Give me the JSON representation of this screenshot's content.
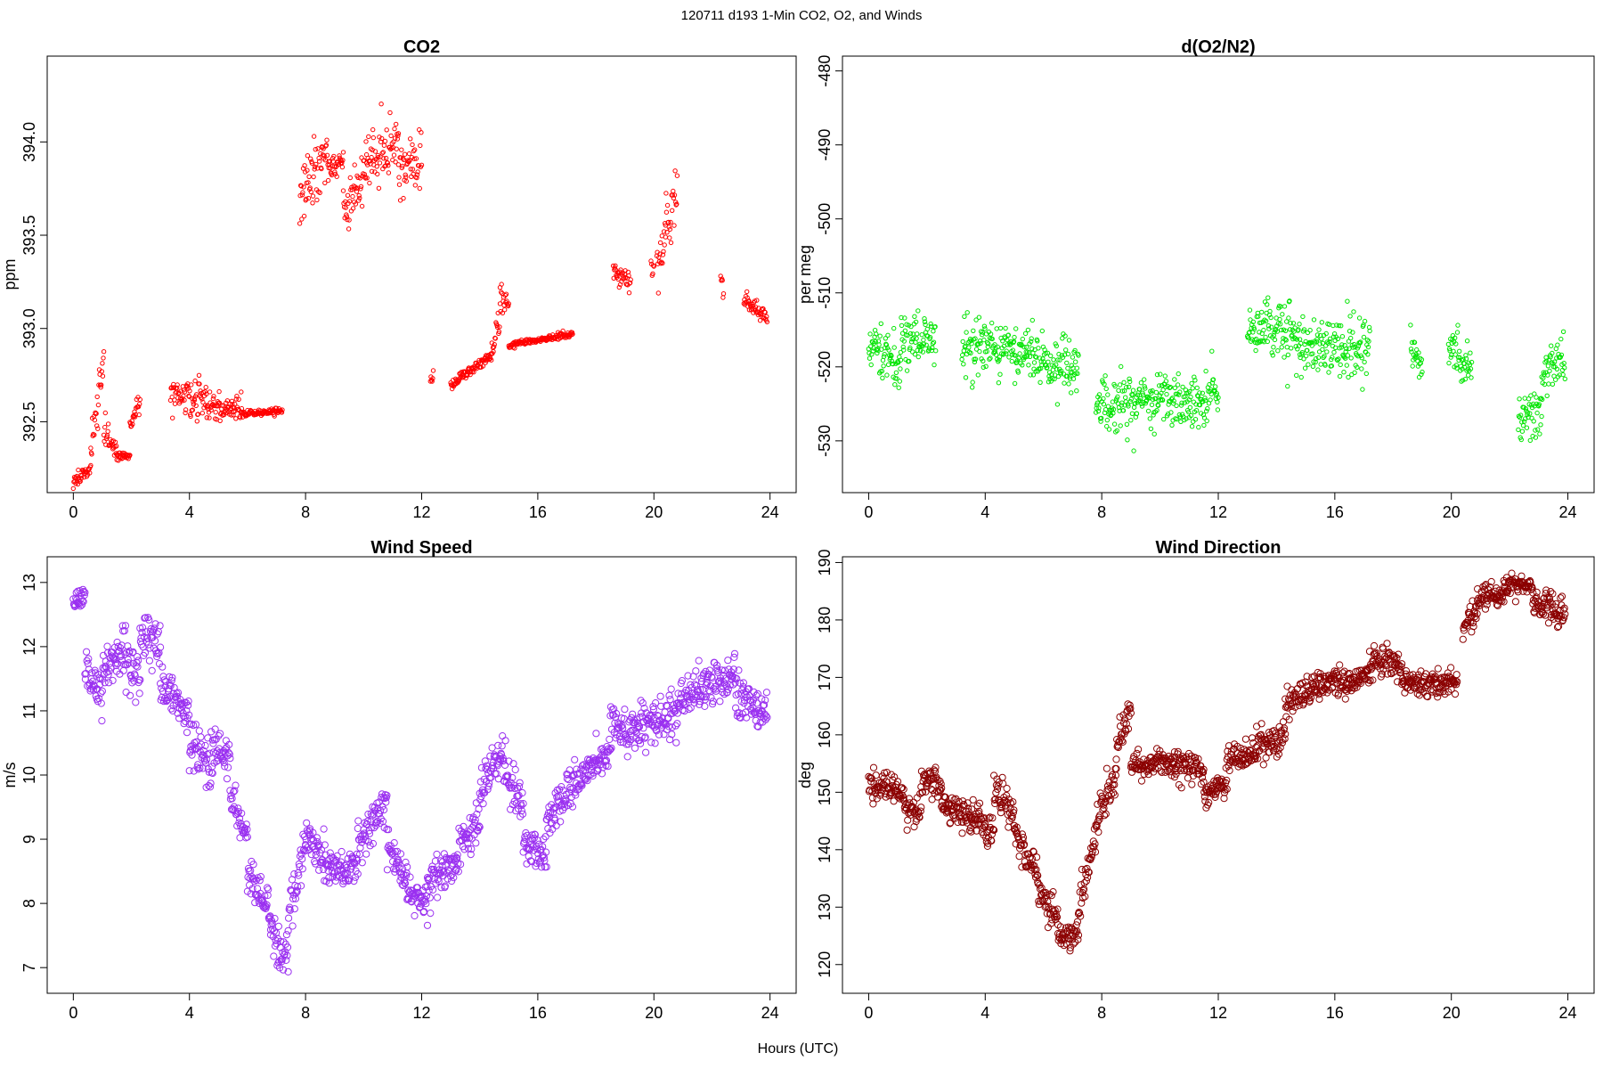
{
  "figure": {
    "title": "120711   d193   1-Min CO2, O2, and Winds",
    "xlabel": "Hours (UTC)"
  },
  "chart_data": [
    {
      "type": "scatter",
      "title": "CO2",
      "ylabel": "ppm",
      "color": "#ff0000",
      "marker_size": 2.2,
      "xlim": [
        -0.9,
        24.9
      ],
      "ylim": [
        392.12,
        394.46
      ],
      "xticks": [
        0,
        4,
        8,
        12,
        16,
        20,
        24
      ],
      "yticks": [
        392.5,
        393.0,
        393.5,
        394.0
      ],
      "ytick_labels": [
        "392.5",
        "393.0",
        "393.5",
        "394.0"
      ],
      "series": [
        {
          "segments": [
            {
              "x0": 0.0,
              "x1": 0.6,
              "y0": 392.18,
              "y1": 392.25,
              "noise": 0.03
            },
            {
              "x0": 0.6,
              "x1": 1.05,
              "y0": 392.35,
              "y1": 392.85,
              "noise": 0.12
            },
            {
              "x0": 1.05,
              "x1": 1.5,
              "y0": 392.45,
              "y1": 392.35,
              "noise": 0.06
            },
            {
              "x0": 1.5,
              "x1": 1.95,
              "y0": 392.32,
              "y1": 392.32,
              "noise": 0.02
            },
            {
              "x0": 1.95,
              "x1": 2.3,
              "y0": 392.5,
              "y1": 392.6,
              "noise": 0.06
            },
            {
              "x0": 3.35,
              "x1": 4.6,
              "y0": 392.65,
              "y1": 392.6,
              "noise": 0.1
            },
            {
              "x0": 4.6,
              "x1": 5.8,
              "y0": 392.58,
              "y1": 392.56,
              "noise": 0.07
            },
            {
              "x0": 5.8,
              "x1": 7.2,
              "y0": 392.54,
              "y1": 392.56,
              "noise": 0.015
            },
            {
              "x0": 7.8,
              "x1": 8.8,
              "y0": 393.7,
              "y1": 393.95,
              "noise": 0.15
            },
            {
              "x0": 8.8,
              "x1": 9.3,
              "y0": 393.85,
              "y1": 393.9,
              "noise": 0.05
            },
            {
              "x0": 9.3,
              "x1": 10.1,
              "y0": 393.6,
              "y1": 393.85,
              "noise": 0.12
            },
            {
              "x0": 10.1,
              "x1": 11.2,
              "y0": 393.9,
              "y1": 394.0,
              "noise": 0.17
            },
            {
              "x0": 11.2,
              "x1": 12.0,
              "y0": 393.85,
              "y1": 393.95,
              "noise": 0.15
            },
            {
              "x0": 12.3,
              "x1": 12.4,
              "y0": 392.71,
              "y1": 392.76,
              "noise": 0.03
            },
            {
              "x0": 13.0,
              "x1": 14.4,
              "y0": 392.7,
              "y1": 392.85,
              "noise": 0.025
            },
            {
              "x0": 14.4,
              "x1": 14.7,
              "y0": 392.88,
              "y1": 393.05,
              "noise": 0.07
            },
            {
              "x0": 14.7,
              "x1": 15.0,
              "y0": 393.2,
              "y1": 393.1,
              "noise": 0.07
            },
            {
              "x0": 15.0,
              "x1": 17.2,
              "y0": 392.91,
              "y1": 392.97,
              "noise": 0.015
            },
            {
              "x0": 18.6,
              "x1": 19.2,
              "y0": 393.3,
              "y1": 393.25,
              "noise": 0.06
            },
            {
              "x0": 19.9,
              "x1": 20.0,
              "y0": 393.3,
              "y1": 393.35,
              "noise": 0.06
            },
            {
              "x0": 20.1,
              "x1": 20.4,
              "y0": 393.35,
              "y1": 393.45,
              "noise": 0.1
            },
            {
              "x0": 20.4,
              "x1": 20.8,
              "y0": 393.55,
              "y1": 393.7,
              "noise": 0.15
            },
            {
              "x0": 22.3,
              "x1": 22.4,
              "y0": 393.28,
              "y1": 393.2,
              "noise": 0.04
            },
            {
              "x0": 23.1,
              "x1": 23.9,
              "y0": 393.15,
              "y1": 393.05,
              "noise": 0.035
            }
          ]
        }
      ]
    },
    {
      "type": "scatter",
      "title": "d(O2/N2)",
      "ylabel": "per meg",
      "color": "#00e400",
      "marker_size": 2.2,
      "xlim": [
        -0.9,
        24.9
      ],
      "ylim": [
        -537,
        -478
      ],
      "xticks": [
        0,
        4,
        8,
        12,
        16,
        20,
        24
      ],
      "yticks": [
        -530,
        -520,
        -510,
        -500,
        -490,
        -480
      ],
      "ytick_labels": [
        "-530",
        "-520",
        "-510",
        "-500",
        "-490",
        "-480"
      ],
      "series": [
        {
          "segments": [
            {
              "x0": 0.0,
              "x1": 1.1,
              "y0": -517.0,
              "y1": -518.5,
              "noise": 3.5
            },
            {
              "x0": 1.1,
              "x1": 2.3,
              "y0": -516.0,
              "y1": -516.0,
              "noise": 3.5
            },
            {
              "x0": 3.2,
              "x1": 5.0,
              "y0": -517.0,
              "y1": -517.5,
              "noise": 3.5
            },
            {
              "x0": 5.0,
              "x1": 7.2,
              "y0": -518.0,
              "y1": -520.0,
              "noise": 3.5
            },
            {
              "x0": 7.8,
              "x1": 9.2,
              "y0": -525.0,
              "y1": -525.0,
              "noise": 3.5
            },
            {
              "x0": 9.2,
              "x1": 11.0,
              "y0": -524.5,
              "y1": -524.5,
              "noise": 3.0
            },
            {
              "x0": 11.0,
              "x1": 12.0,
              "y0": -525.0,
              "y1": -523.0,
              "noise": 3.5
            },
            {
              "x0": 13.0,
              "x1": 14.8,
              "y0": -515.0,
              "y1": -515.5,
              "noise": 3.5
            },
            {
              "x0": 14.8,
              "x1": 17.2,
              "y0": -517.5,
              "y1": -517.5,
              "noise": 3.5
            },
            {
              "x0": 18.6,
              "x1": 19.0,
              "y0": -518.0,
              "y1": -520.0,
              "noise": 2.5
            },
            {
              "x0": 19.9,
              "x1": 20.7,
              "y0": -518.0,
              "y1": -520.0,
              "noise": 2.5
            },
            {
              "x0": 22.3,
              "x1": 23.1,
              "y0": -528.0,
              "y1": -526.0,
              "noise": 3.0
            },
            {
              "x0": 23.1,
              "x1": 23.9,
              "y0": -522.0,
              "y1": -518.0,
              "noise": 3.0
            }
          ]
        }
      ]
    },
    {
      "type": "scatter",
      "title": "Wind Speed",
      "ylabel": "m/s",
      "color": "#9a30f0",
      "marker_size": 3.6,
      "xlim": [
        -0.9,
        24.9
      ],
      "ylim": [
        6.6,
        13.4
      ],
      "xticks": [
        0,
        4,
        8,
        12,
        16,
        20,
        24
      ],
      "yticks": [
        7,
        8,
        9,
        10,
        11,
        12,
        13
      ],
      "ytick_labels": [
        "7",
        "8",
        "9",
        "10",
        "11",
        "12",
        "13"
      ],
      "series": [
        {
          "segments": [
            {
              "x0": 0.0,
              "x1": 0.4,
              "y0": 12.7,
              "y1": 12.8,
              "noise": 0.15
            },
            {
              "x0": 0.4,
              "x1": 1.0,
              "y0": 11.6,
              "y1": 11.3,
              "noise": 0.35
            },
            {
              "x0": 1.0,
              "x1": 1.8,
              "y0": 11.5,
              "y1": 12.0,
              "noise": 0.35
            },
            {
              "x0": 1.8,
              "x1": 2.3,
              "y0": 11.8,
              "y1": 11.6,
              "noise": 0.35
            },
            {
              "x0": 2.3,
              "x1": 3.0,
              "y0": 12.2,
              "y1": 12.0,
              "noise": 0.35
            },
            {
              "x0": 3.0,
              "x1": 4.0,
              "y0": 11.4,
              "y1": 10.9,
              "noise": 0.3
            },
            {
              "x0": 4.0,
              "x1": 4.8,
              "y0": 10.5,
              "y1": 10.1,
              "noise": 0.35
            },
            {
              "x0": 4.8,
              "x1": 5.4,
              "y0": 10.5,
              "y1": 10.2,
              "noise": 0.3
            },
            {
              "x0": 5.4,
              "x1": 6.0,
              "y0": 9.7,
              "y1": 9.0,
              "noise": 0.25
            },
            {
              "x0": 6.0,
              "x1": 6.8,
              "y0": 8.5,
              "y1": 7.8,
              "noise": 0.3
            },
            {
              "x0": 6.8,
              "x1": 7.4,
              "y0": 7.6,
              "y1": 7.2,
              "noise": 0.3
            },
            {
              "x0": 7.4,
              "x1": 8.0,
              "y0": 7.8,
              "y1": 8.9,
              "noise": 0.35
            },
            {
              "x0": 8.0,
              "x1": 8.8,
              "y0": 9.0,
              "y1": 8.6,
              "noise": 0.3
            },
            {
              "x0": 8.8,
              "x1": 9.8,
              "y0": 8.5,
              "y1": 8.6,
              "noise": 0.25
            },
            {
              "x0": 9.8,
              "x1": 10.8,
              "y0": 9.0,
              "y1": 9.6,
              "noise": 0.3
            },
            {
              "x0": 10.8,
              "x1": 11.5,
              "y0": 8.9,
              "y1": 8.4,
              "noise": 0.3
            },
            {
              "x0": 11.5,
              "x1": 12.2,
              "y0": 8.2,
              "y1": 8.0,
              "noise": 0.25
            },
            {
              "x0": 12.2,
              "x1": 13.2,
              "y0": 8.3,
              "y1": 8.6,
              "noise": 0.3
            },
            {
              "x0": 13.2,
              "x1": 14.0,
              "y0": 8.8,
              "y1": 9.3,
              "noise": 0.3
            },
            {
              "x0": 14.0,
              "x1": 14.8,
              "y0": 9.8,
              "y1": 10.4,
              "noise": 0.3
            },
            {
              "x0": 14.8,
              "x1": 15.5,
              "y0": 10.2,
              "y1": 9.5,
              "noise": 0.3
            },
            {
              "x0": 15.5,
              "x1": 16.3,
              "y0": 9.0,
              "y1": 8.7,
              "noise": 0.3
            },
            {
              "x0": 16.3,
              "x1": 17.2,
              "y0": 9.3,
              "y1": 9.8,
              "noise": 0.3
            },
            {
              "x0": 17.2,
              "x1": 18.5,
              "y0": 9.9,
              "y1": 10.3,
              "noise": 0.3
            },
            {
              "x0": 18.5,
              "x1": 19.5,
              "y0": 10.8,
              "y1": 10.6,
              "noise": 0.3
            },
            {
              "x0": 19.5,
              "x1": 20.8,
              "y0": 10.8,
              "y1": 10.9,
              "noise": 0.3
            },
            {
              "x0": 20.8,
              "x1": 21.8,
              "y0": 11.1,
              "y1": 11.4,
              "noise": 0.3
            },
            {
              "x0": 21.8,
              "x1": 22.8,
              "y0": 11.4,
              "y1": 11.6,
              "noise": 0.3
            },
            {
              "x0": 22.8,
              "x1": 23.9,
              "y0": 11.2,
              "y1": 11.0,
              "noise": 0.3
            }
          ]
        }
      ]
    },
    {
      "type": "scatter",
      "title": "Wind Direction",
      "ylabel": "deg",
      "color": "#8b0000",
      "marker_size": 3.6,
      "xlim": [
        -0.9,
        24.9
      ],
      "ylim": [
        115,
        191
      ],
      "xticks": [
        0,
        4,
        8,
        12,
        16,
        20,
        24
      ],
      "yticks": [
        120,
        130,
        140,
        150,
        160,
        170,
        180,
        190
      ],
      "ytick_labels": [
        "120",
        "130",
        "140",
        "150",
        "160",
        "170",
        "180",
        "190"
      ],
      "series": [
        {
          "segments": [
            {
              "x0": 0.0,
              "x1": 1.2,
              "y0": 151.0,
              "y1": 150.0,
              "noise": 2.5
            },
            {
              "x0": 1.2,
              "x1": 1.8,
              "y0": 148.0,
              "y1": 146.0,
              "noise": 2.0
            },
            {
              "x0": 1.8,
              "x1": 2.5,
              "y0": 152.0,
              "y1": 152.0,
              "noise": 2.5
            },
            {
              "x0": 2.5,
              "x1": 3.5,
              "y0": 148.0,
              "y1": 146.0,
              "noise": 2.5
            },
            {
              "x0": 3.5,
              "x1": 4.3,
              "y0": 146.0,
              "y1": 143.0,
              "noise": 2.5
            },
            {
              "x0": 4.3,
              "x1": 5.0,
              "y0": 150.0,
              "y1": 147.0,
              "noise": 3.0
            },
            {
              "x0": 5.0,
              "x1": 5.8,
              "y0": 143.0,
              "y1": 136.0,
              "noise": 2.5
            },
            {
              "x0": 5.8,
              "x1": 6.5,
              "y0": 133.0,
              "y1": 128.0,
              "noise": 2.5
            },
            {
              "x0": 6.5,
              "x1": 7.2,
              "y0": 125.0,
              "y1": 125.0,
              "noise": 2.5
            },
            {
              "x0": 7.2,
              "x1": 7.8,
              "y0": 130.0,
              "y1": 142.0,
              "noise": 3.0
            },
            {
              "x0": 7.8,
              "x1": 8.5,
              "y0": 145.0,
              "y1": 153.0,
              "noise": 3.0
            },
            {
              "x0": 8.5,
              "x1": 9.0,
              "y0": 158.0,
              "y1": 164.0,
              "noise": 2.5
            },
            {
              "x0": 9.0,
              "x1": 10.5,
              "y0": 155.0,
              "y1": 155.0,
              "noise": 2.0
            },
            {
              "x0": 10.5,
              "x1": 11.5,
              "y0": 155.0,
              "y1": 154.0,
              "noise": 2.5
            },
            {
              "x0": 11.5,
              "x1": 12.3,
              "y0": 150.0,
              "y1": 151.0,
              "noise": 2.5
            },
            {
              "x0": 12.3,
              "x1": 13.3,
              "y0": 156.0,
              "y1": 157.0,
              "noise": 2.5
            },
            {
              "x0": 13.3,
              "x1": 14.3,
              "y0": 158.0,
              "y1": 160.0,
              "noise": 2.5
            },
            {
              "x0": 14.3,
              "x1": 15.3,
              "y0": 165.0,
              "y1": 169.0,
              "noise": 2.5
            },
            {
              "x0": 15.3,
              "x1": 16.5,
              "y0": 169.0,
              "y1": 170.0,
              "noise": 2.5
            },
            {
              "x0": 16.5,
              "x1": 17.3,
              "y0": 169.0,
              "y1": 171.0,
              "noise": 2.5
            },
            {
              "x0": 17.3,
              "x1": 18.3,
              "y0": 173.0,
              "y1": 172.0,
              "noise": 2.5
            },
            {
              "x0": 18.3,
              "x1": 20.2,
              "y0": 169.0,
              "y1": 169.0,
              "noise": 2.0
            },
            {
              "x0": 20.4,
              "x1": 20.9,
              "y0": 178.0,
              "y1": 182.0,
              "noise": 2.5
            },
            {
              "x0": 20.9,
              "x1": 21.8,
              "y0": 184.0,
              "y1": 184.0,
              "noise": 2.0
            },
            {
              "x0": 21.8,
              "x1": 22.8,
              "y0": 186.0,
              "y1": 186.0,
              "noise": 1.5
            },
            {
              "x0": 22.8,
              "x1": 23.9,
              "y0": 183.0,
              "y1": 181.0,
              "noise": 2.5
            }
          ]
        }
      ]
    }
  ]
}
